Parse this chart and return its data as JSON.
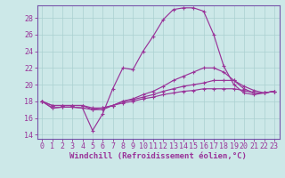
{
  "xlabel": "Windchill (Refroidissement éolien,°C)",
  "xlim": [
    -0.5,
    23.5
  ],
  "ylim": [
    13.5,
    29.5
  ],
  "yticks": [
    14,
    16,
    18,
    20,
    22,
    24,
    26,
    28
  ],
  "xticks": [
    0,
    1,
    2,
    3,
    4,
    5,
    6,
    7,
    8,
    9,
    10,
    11,
    12,
    13,
    14,
    15,
    16,
    17,
    18,
    19,
    20,
    21,
    22,
    23
  ],
  "background_color": "#cce8e8",
  "grid_color": "#aad0d0",
  "line_color": "#993399",
  "spine_color": "#7755aa",
  "curves": [
    [
      18.0,
      17.2,
      17.3,
      17.3,
      17.2,
      14.5,
      16.5,
      19.5,
      22.0,
      21.8,
      24.0,
      25.8,
      27.8,
      29.0,
      29.2,
      29.2,
      28.8,
      26.0,
      22.2,
      20.0,
      19.0,
      18.8,
      19.0,
      19.2
    ],
    [
      18.0,
      17.2,
      17.3,
      17.3,
      17.2,
      17.0,
      17.0,
      17.5,
      18.0,
      18.3,
      18.8,
      19.2,
      19.8,
      20.5,
      21.0,
      21.5,
      22.0,
      22.0,
      21.5,
      20.5,
      19.5,
      19.0,
      19.0,
      19.2
    ],
    [
      18.0,
      17.5,
      17.5,
      17.5,
      17.5,
      17.0,
      17.2,
      17.5,
      18.0,
      18.2,
      18.5,
      18.8,
      19.2,
      19.5,
      19.8,
      20.0,
      20.2,
      20.5,
      20.5,
      20.5,
      19.8,
      19.3,
      19.0,
      19.2
    ],
    [
      18.0,
      17.5,
      17.5,
      17.5,
      17.5,
      17.2,
      17.2,
      17.5,
      17.8,
      18.0,
      18.3,
      18.5,
      18.8,
      19.0,
      19.2,
      19.3,
      19.5,
      19.5,
      19.5,
      19.5,
      19.3,
      19.0,
      19.0,
      19.2
    ]
  ],
  "tick_fontsize": 6.0,
  "xlabel_fontsize": 6.5
}
